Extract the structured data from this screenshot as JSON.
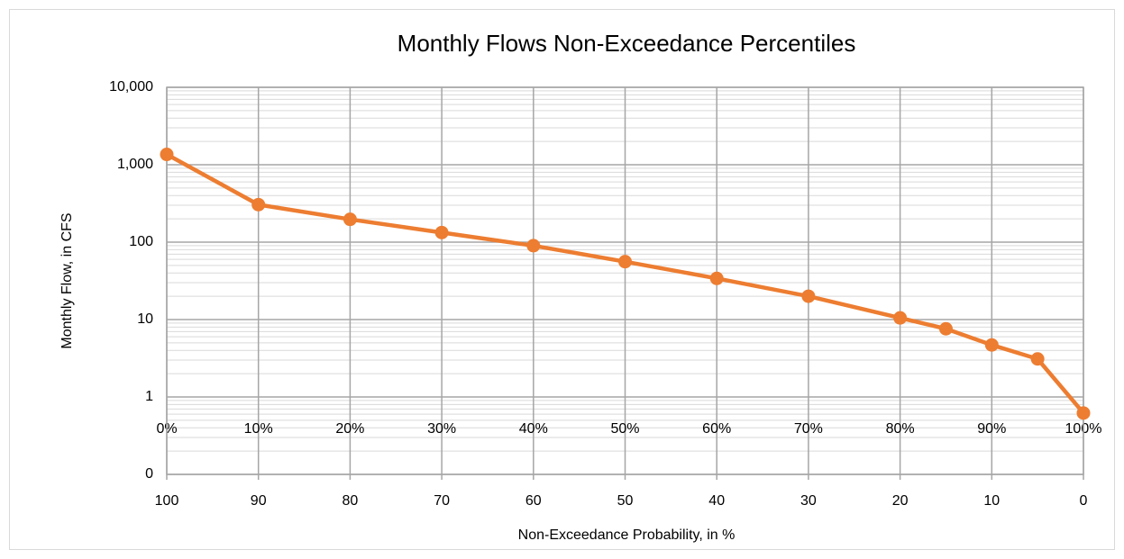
{
  "chart_data": {
    "type": "line",
    "title": "Monthly Flows Non-Exceedance Percentiles",
    "ylabel": "Monthly Flow, in CFS",
    "xlabel": "Non-Exceedance Probability, in %",
    "x": [
      0,
      10,
      20,
      30,
      40,
      50,
      60,
      70,
      80,
      85,
      90,
      95,
      100
    ],
    "series": [
      {
        "name": "Monthly Flow",
        "color": "#ED7D31",
        "values": [
          1360,
          305,
          197,
          133,
          90,
          56,
          34,
          20,
          10.5,
          7.6,
          4.7,
          3.1,
          0.62
        ]
      }
    ],
    "xlim": [
      0,
      100
    ],
    "xticks": [
      {
        "value": 0,
        "label": "0%"
      },
      {
        "value": 10,
        "label": "10%"
      },
      {
        "value": 20,
        "label": "20%"
      },
      {
        "value": 30,
        "label": "30%"
      },
      {
        "value": 40,
        "label": "40%"
      },
      {
        "value": 50,
        "label": "50%"
      },
      {
        "value": 60,
        "label": "60%"
      },
      {
        "value": 70,
        "label": "70%"
      },
      {
        "value": 80,
        "label": "80%"
      },
      {
        "value": 90,
        "label": "90%"
      },
      {
        "value": 100,
        "label": "100%"
      }
    ],
    "x2ticks": [
      {
        "value": 0,
        "label": "100"
      },
      {
        "value": 10,
        "label": "90"
      },
      {
        "value": 20,
        "label": "80"
      },
      {
        "value": 30,
        "label": "70"
      },
      {
        "value": 40,
        "label": "60"
      },
      {
        "value": 50,
        "label": "50"
      },
      {
        "value": 60,
        "label": "40"
      },
      {
        "value": 70,
        "label": "30"
      },
      {
        "value": 80,
        "label": "20"
      },
      {
        "value": 90,
        "label": "10"
      },
      {
        "value": 100,
        "label": "0"
      }
    ],
    "ylim": [
      0.1,
      10000
    ],
    "yticks": [
      {
        "value": 0.1,
        "label": "0"
      },
      1,
      10,
      100,
      {
        "value": 1000,
        "label": "1,000"
      },
      {
        "value": 10000,
        "label": "10,000"
      }
    ],
    "log_y": true,
    "grid": true,
    "minor_grid": true
  }
}
